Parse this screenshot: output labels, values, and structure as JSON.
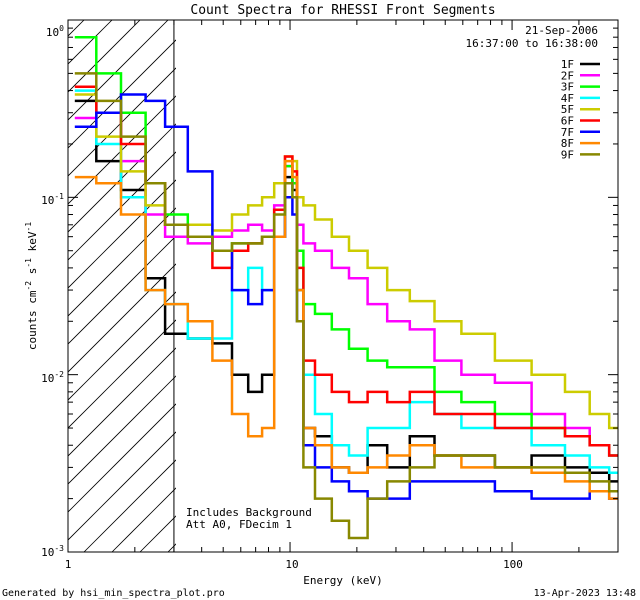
{
  "chart_data": {
    "type": "line",
    "title": "Count Spectra for RHESSI Front Segments",
    "xlabel": "Energy (keV)",
    "ylabel": "counts cm-2 s-1 keV-1",
    "xscale": "log",
    "yscale": "log",
    "xlim": [
      1,
      300
    ],
    "ylim": [
      0.001,
      1
    ],
    "x_tick_labels": [
      "1",
      "10",
      "100"
    ],
    "y_tick_labels": [
      "10-3",
      "10-2",
      "10-1",
      "100"
    ],
    "date": "21-Sep-2006",
    "time_range": "16:37:00 to 16:38:00",
    "shaded_region_xmax": 3,
    "annotation_lines": [
      "Includes Background",
      "Att A0, FDecim 1"
    ],
    "footer_left": "Generated by hsi_min_spectra_plot.pro",
    "footer_right": "13-Apr-2023 13:48",
    "series": [
      {
        "name": "1F",
        "color": "#000000",
        "x": [
          1.2,
          1.5,
          2.0,
          2.5,
          3,
          4,
          5,
          6,
          7,
          8,
          9,
          10,
          10.5,
          11,
          12,
          14,
          17,
          20,
          25,
          30,
          40,
          50,
          70,
          100,
          150,
          200,
          250,
          300
        ],
        "y": [
          0.35,
          0.16,
          0.11,
          0.035,
          0.017,
          0.016,
          0.015,
          0.01,
          0.008,
          0.01,
          0.06,
          0.13,
          0.11,
          0.03,
          0.005,
          0.0045,
          0.003,
          0.0028,
          0.004,
          0.003,
          0.0045,
          0.0035,
          0.0035,
          0.003,
          0.0035,
          0.003,
          0.0028,
          0.0025
        ]
      },
      {
        "name": "2F",
        "color": "#ff00ff",
        "x": [
          1.2,
          1.5,
          2.0,
          2.5,
          3,
          4,
          5,
          6,
          7,
          8,
          9,
          10,
          10.5,
          11,
          12,
          14,
          17,
          20,
          25,
          30,
          40,
          50,
          70,
          100,
          150,
          200,
          250,
          300
        ],
        "y": [
          0.28,
          0.3,
          0.16,
          0.08,
          0.06,
          0.055,
          0.06,
          0.065,
          0.07,
          0.065,
          0.09,
          0.15,
          0.12,
          0.07,
          0.055,
          0.05,
          0.04,
          0.035,
          0.025,
          0.02,
          0.018,
          0.012,
          0.01,
          0.009,
          0.006,
          0.005,
          0.004,
          0.0035
        ]
      },
      {
        "name": "3F",
        "color": "#00ff00",
        "x": [
          1.2,
          1.5,
          2.0,
          2.5,
          3,
          4,
          5,
          6,
          7,
          8,
          9,
          10,
          10.5,
          11,
          12,
          14,
          17,
          20,
          25,
          30,
          40,
          50,
          70,
          100,
          150,
          200,
          250,
          300
        ],
        "y": [
          0.8,
          0.5,
          0.3,
          0.12,
          0.08,
          0.06,
          0.05,
          0.055,
          0.055,
          0.06,
          0.085,
          0.15,
          0.12,
          0.05,
          0.025,
          0.022,
          0.018,
          0.014,
          0.012,
          0.011,
          0.011,
          0.008,
          0.007,
          0.006,
          0.005,
          0.0045,
          0.004,
          0.0035
        ]
      },
      {
        "name": "4F",
        "color": "#00ffff",
        "x": [
          1.2,
          1.5,
          2.0,
          2.5,
          3,
          4,
          5,
          6,
          7,
          8,
          9,
          10,
          10.5,
          11,
          12,
          14,
          17,
          20,
          25,
          30,
          40,
          50,
          70,
          100,
          150,
          200,
          250,
          300
        ],
        "y": [
          0.4,
          0.2,
          0.1,
          0.03,
          0.025,
          0.016,
          0.016,
          0.03,
          0.04,
          0.03,
          0.06,
          0.12,
          0.1,
          0.03,
          0.01,
          0.006,
          0.004,
          0.0035,
          0.005,
          0.005,
          0.007,
          0.006,
          0.005,
          0.005,
          0.004,
          0.0035,
          0.003,
          0.0028
        ]
      },
      {
        "name": "5F",
        "color": "#cccc00",
        "x": [
          1.2,
          1.5,
          2.0,
          2.5,
          3,
          4,
          5,
          6,
          7,
          8,
          9,
          10,
          10.5,
          11,
          12,
          14,
          17,
          20,
          25,
          30,
          40,
          50,
          70,
          100,
          150,
          200,
          250,
          300
        ],
        "y": [
          0.38,
          0.22,
          0.14,
          0.09,
          0.07,
          0.07,
          0.065,
          0.08,
          0.09,
          0.1,
          0.12,
          0.17,
          0.16,
          0.1,
          0.09,
          0.075,
          0.06,
          0.05,
          0.04,
          0.03,
          0.026,
          0.02,
          0.017,
          0.012,
          0.01,
          0.008,
          0.006,
          0.005
        ]
      },
      {
        "name": "6F",
        "color": "#ff0000",
        "x": [
          1.2,
          1.5,
          2.0,
          2.5,
          3,
          4,
          5,
          6,
          7,
          8,
          9,
          10,
          10.5,
          11,
          12,
          14,
          17,
          20,
          25,
          30,
          40,
          50,
          70,
          100,
          150,
          200,
          250,
          300
        ],
        "y": [
          0.42,
          0.3,
          0.2,
          0.12,
          0.07,
          0.06,
          0.04,
          0.05,
          0.055,
          0.06,
          0.085,
          0.17,
          0.14,
          0.04,
          0.012,
          0.01,
          0.008,
          0.007,
          0.008,
          0.007,
          0.008,
          0.006,
          0.006,
          0.005,
          0.005,
          0.0045,
          0.004,
          0.0035
        ]
      },
      {
        "name": "7F",
        "color": "#0000ff",
        "x": [
          1.2,
          1.5,
          2.0,
          2.5,
          3,
          4,
          5,
          6,
          7,
          8,
          9,
          10,
          10.5,
          11,
          12,
          14,
          17,
          20,
          25,
          30,
          40,
          50,
          70,
          100,
          150,
          200,
          250,
          300
        ],
        "y": [
          0.25,
          0.3,
          0.38,
          0.35,
          0.25,
          0.14,
          0.05,
          0.03,
          0.025,
          0.03,
          0.06,
          0.1,
          0.08,
          0.02,
          0.004,
          0.003,
          0.0025,
          0.0022,
          0.002,
          0.002,
          0.0025,
          0.0025,
          0.0025,
          0.0022,
          0.002,
          0.002,
          0.0022,
          0.002
        ]
      },
      {
        "name": "8F",
        "color": "#ff8800",
        "x": [
          1.2,
          1.5,
          2.0,
          2.5,
          3,
          4,
          5,
          6,
          7,
          8,
          9,
          10,
          10.5,
          11,
          12,
          14,
          17,
          20,
          25,
          30,
          40,
          50,
          70,
          100,
          150,
          200,
          250,
          300
        ],
        "y": [
          0.13,
          0.12,
          0.08,
          0.03,
          0.025,
          0.02,
          0.012,
          0.006,
          0.0045,
          0.005,
          0.06,
          0.16,
          0.13,
          0.03,
          0.005,
          0.004,
          0.003,
          0.0028,
          0.003,
          0.0035,
          0.004,
          0.0035,
          0.003,
          0.003,
          0.0028,
          0.0025,
          0.0022,
          0.002
        ]
      },
      {
        "name": "9F",
        "color": "#888800",
        "x": [
          1.2,
          1.5,
          2.0,
          2.5,
          3,
          4,
          5,
          6,
          7,
          8,
          9,
          10,
          10.5,
          11,
          12,
          14,
          17,
          20,
          25,
          30,
          40,
          50,
          70,
          100,
          150,
          200,
          250,
          300
        ],
        "y": [
          0.5,
          0.35,
          0.22,
          0.12,
          0.07,
          0.06,
          0.05,
          0.055,
          0.055,
          0.06,
          0.08,
          0.12,
          0.1,
          0.02,
          0.003,
          0.002,
          0.0015,
          0.0012,
          0.002,
          0.0025,
          0.003,
          0.0035,
          0.0035,
          0.003,
          0.003,
          0.0028,
          0.0025,
          0.0022
        ]
      }
    ]
  }
}
